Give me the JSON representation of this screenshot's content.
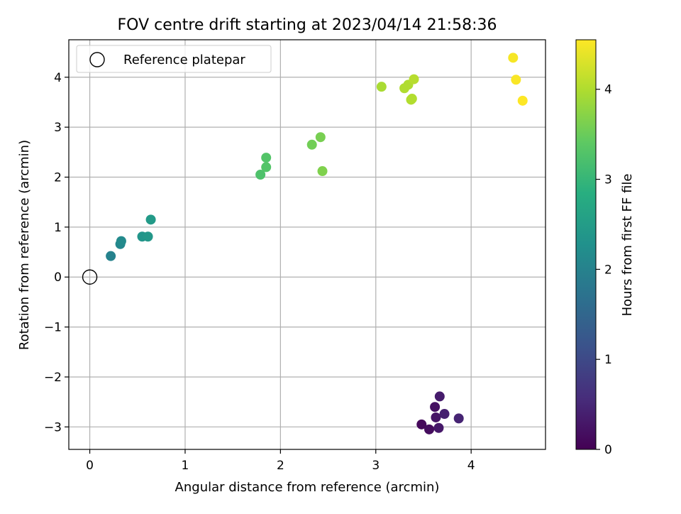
{
  "chart_data": {
    "type": "scatter",
    "title": "FOV centre drift starting at 2023/04/14 21:58:36",
    "xlabel": "Angular distance from reference (arcmin)",
    "ylabel": "Rotation from reference (arcmin)",
    "xlim": [
      -0.22,
      4.78
    ],
    "ylim": [
      -3.45,
      4.75
    ],
    "x_ticks": [
      {
        "value": 0,
        "label": "0"
      },
      {
        "value": 1,
        "label": "1"
      },
      {
        "value": 2,
        "label": "2"
      },
      {
        "value": 3,
        "label": "3"
      },
      {
        "value": 4,
        "label": "4"
      }
    ],
    "y_ticks": [
      {
        "value": -3,
        "label": "−3"
      },
      {
        "value": -2,
        "label": "−2"
      },
      {
        "value": -1,
        "label": "−1"
      },
      {
        "value": 0,
        "label": "0"
      },
      {
        "value": 1,
        "label": "1"
      },
      {
        "value": 2,
        "label": "2"
      },
      {
        "value": 3,
        "label": "3"
      },
      {
        "value": 4,
        "label": "4"
      }
    ],
    "grid": true,
    "legend": {
      "placement": "top-left",
      "entries": [
        {
          "label": "Reference platepar",
          "marker": "open-circle"
        }
      ]
    },
    "reference_point": {
      "x": 0,
      "y": 0,
      "label": "Reference platepar"
    },
    "colorbar": {
      "label": "Hours from first FF file",
      "colormap": "viridis",
      "range": [
        0,
        4.55
      ],
      "ticks": [
        {
          "value": 0,
          "label": "0"
        },
        {
          "value": 1,
          "label": "1"
        },
        {
          "value": 2,
          "label": "2"
        },
        {
          "value": 3,
          "label": "3"
        },
        {
          "value": 4,
          "label": "4"
        }
      ]
    },
    "points": [
      {
        "x": 3.48,
        "y": -2.95,
        "c": 0.1
      },
      {
        "x": 3.56,
        "y": -3.05,
        "c": 0.15
      },
      {
        "x": 3.62,
        "y": -2.6,
        "c": 0.2
      },
      {
        "x": 3.63,
        "y": -2.81,
        "c": 0.25
      },
      {
        "x": 3.66,
        "y": -3.02,
        "c": 0.3
      },
      {
        "x": 3.67,
        "y": -2.39,
        "c": 0.35
      },
      {
        "x": 3.72,
        "y": -2.74,
        "c": 0.4
      },
      {
        "x": 3.87,
        "y": -2.83,
        "c": 0.45
      },
      {
        "x": 0.22,
        "y": 0.42,
        "c": 2.0
      },
      {
        "x": 0.32,
        "y": 0.66,
        "c": 2.1
      },
      {
        "x": 0.33,
        "y": 0.72,
        "c": 2.15
      },
      {
        "x": 0.55,
        "y": 0.81,
        "c": 2.35
      },
      {
        "x": 0.61,
        "y": 0.81,
        "c": 2.4
      },
      {
        "x": 0.64,
        "y": 1.15,
        "c": 2.45
      },
      {
        "x": 1.79,
        "y": 2.05,
        "c": 3.25
      },
      {
        "x": 1.85,
        "y": 2.2,
        "c": 3.3
      },
      {
        "x": 1.85,
        "y": 2.39,
        "c": 3.3
      },
      {
        "x": 2.33,
        "y": 2.65,
        "c": 3.55
      },
      {
        "x": 2.42,
        "y": 2.8,
        "c": 3.6
      },
      {
        "x": 2.44,
        "y": 2.12,
        "c": 3.65
      },
      {
        "x": 3.06,
        "y": 3.81,
        "c": 3.95
      },
      {
        "x": 3.3,
        "y": 3.78,
        "c": 4.0
      },
      {
        "x": 3.34,
        "y": 3.85,
        "c": 4.0
      },
      {
        "x": 3.37,
        "y": 3.55,
        "c": 4.02
      },
      {
        "x": 3.38,
        "y": 3.57,
        "c": 4.02
      },
      {
        "x": 3.4,
        "y": 3.96,
        "c": 4.05
      },
      {
        "x": 4.44,
        "y": 4.39,
        "c": 4.5
      },
      {
        "x": 4.47,
        "y": 3.95,
        "c": 4.52
      },
      {
        "x": 4.54,
        "y": 3.53,
        "c": 4.55
      }
    ]
  }
}
